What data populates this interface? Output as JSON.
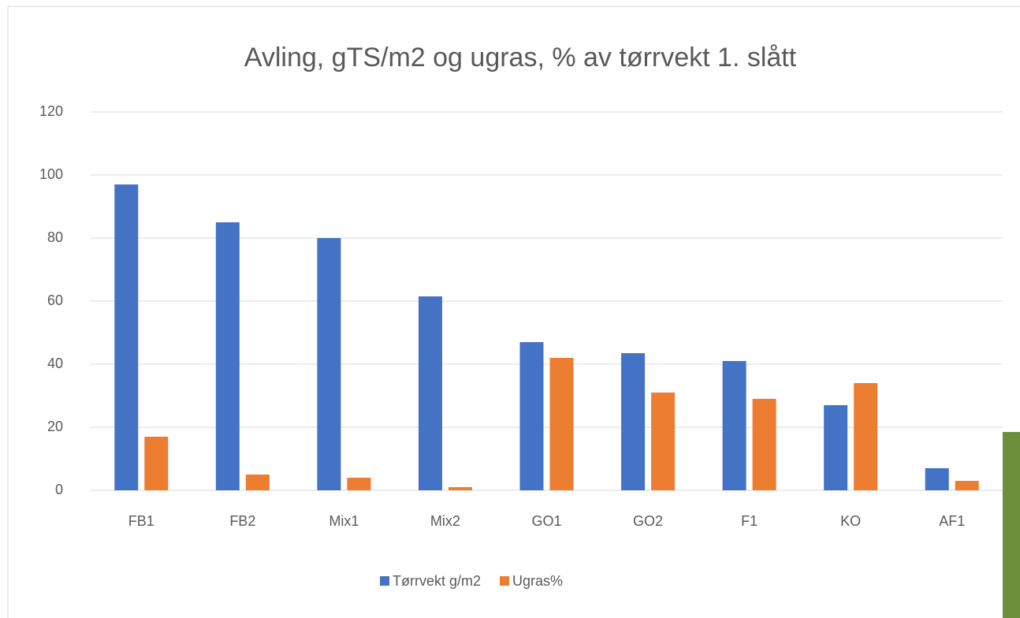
{
  "chart_data": {
    "type": "bar",
    "title": "Avling, gTS/m2 og ugras, % av tørrvekt 1. slått",
    "categories": [
      "FB1",
      "FB2",
      "Mix1",
      "Mix2",
      "GO1",
      "GO2",
      "F1",
      "KO",
      "AF1"
    ],
    "series": [
      {
        "name": "Tørrvekt g/m2",
        "color": "#4472c4",
        "values": [
          97,
          85,
          80,
          61.5,
          47,
          43.5,
          41,
          27,
          7
        ]
      },
      {
        "name": "Ugras%",
        "color": "#ed7d31",
        "values": [
          17,
          5,
          4,
          1,
          42,
          31,
          29,
          34,
          3
        ]
      }
    ],
    "ylim": [
      0,
      120
    ],
    "yticks": [
      0,
      20,
      40,
      60,
      80,
      100,
      120
    ],
    "grid": true,
    "legend": "bottom"
  }
}
